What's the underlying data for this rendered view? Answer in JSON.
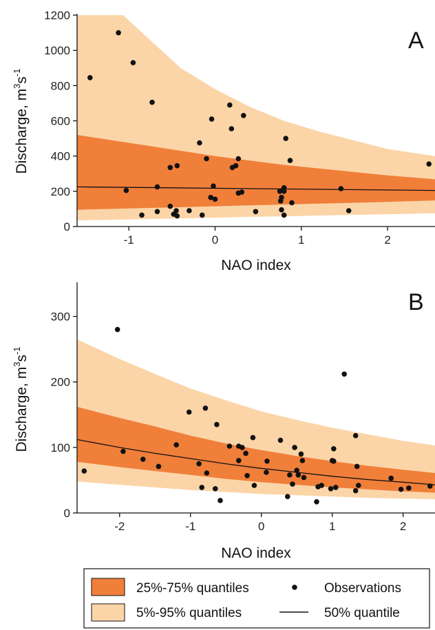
{
  "chart_data": [
    {
      "type": "scatter",
      "panel_label": "A",
      "xlabel": "NAO index",
      "ylabel_main": "Discharge, m",
      "ylabel_sup1": "3",
      "ylabel_mid": "s",
      "ylabel_sup2": "-1",
      "xlim": [
        -1.6,
        2.55
      ],
      "ylim": [
        0,
        1200
      ],
      "xticks": [
        -1,
        0,
        1,
        2
      ],
      "yticks": [
        0,
        200,
        400,
        600,
        800,
        1000,
        1200
      ],
      "band_5_95": {
        "x": [
          -1.6,
          -1.2,
          -0.8,
          -0.4,
          0.0,
          0.4,
          0.8,
          1.2,
          1.6,
          2.0,
          2.55
        ],
        "lower": [
          35,
          38,
          42,
          46,
          50,
          55,
          58,
          62,
          66,
          70,
          75
        ],
        "upper": [
          1500,
          1260,
          1080,
          900,
          780,
          680,
          600,
          540,
          490,
          440,
          400
        ]
      },
      "band_25_75": {
        "x": [
          -1.6,
          -1.2,
          -0.8,
          -0.4,
          0.0,
          0.4,
          0.8,
          1.2,
          1.6,
          2.0,
          2.55
        ],
        "lower": [
          95,
          100,
          105,
          110,
          115,
          120,
          125,
          130,
          135,
          140,
          148
        ],
        "upper": [
          520,
          490,
          460,
          430,
          400,
          375,
          350,
          330,
          310,
          290,
          268
        ]
      },
      "median": {
        "x": [
          -1.6,
          2.55
        ],
        "y": [
          225,
          205
        ]
      },
      "points": [
        [
          -1.45,
          845
        ],
        [
          -1.12,
          1100
        ],
        [
          -0.95,
          930
        ],
        [
          -0.73,
          705
        ],
        [
          -1.03,
          205
        ],
        [
          -0.67,
          225
        ],
        [
          -0.67,
          85
        ],
        [
          -0.85,
          65
        ],
        [
          -0.52,
          335
        ],
        [
          -0.44,
          345
        ],
        [
          -0.52,
          115
        ],
        [
          -0.48,
          70
        ],
        [
          -0.45,
          90
        ],
        [
          -0.44,
          60
        ],
        [
          -0.3,
          90
        ],
        [
          -0.18,
          475
        ],
        [
          -0.1,
          385
        ],
        [
          -0.15,
          65
        ],
        [
          -0.04,
          610
        ],
        [
          -0.02,
          230
        ],
        [
          -0.05,
          165
        ],
        [
          0.0,
          155
        ],
        [
          0.17,
          690
        ],
        [
          0.19,
          555
        ],
        [
          0.2,
          335
        ],
        [
          0.24,
          345
        ],
        [
          0.27,
          385
        ],
        [
          0.27,
          190
        ],
        [
          0.33,
          630
        ],
        [
          0.31,
          195
        ],
        [
          0.47,
          85
        ],
        [
          0.75,
          200
        ],
        [
          0.77,
          165
        ],
        [
          0.76,
          145
        ],
        [
          0.77,
          95
        ],
        [
          0.79,
          210
        ],
        [
          0.8,
          220
        ],
        [
          0.8,
          200
        ],
        [
          0.8,
          65
        ],
        [
          0.82,
          500
        ],
        [
          0.87,
          375
        ],
        [
          0.89,
          135
        ],
        [
          1.46,
          215
        ],
        [
          1.55,
          90
        ],
        [
          2.48,
          355
        ]
      ]
    },
    {
      "type": "scatter",
      "panel_label": "B",
      "xlabel": "NAO index",
      "ylabel_main": "Discharge, m",
      "ylabel_sup1": "3",
      "ylabel_mid": "s",
      "ylabel_sup2": "-1",
      "xlim": [
        -2.6,
        2.45
      ],
      "ylim": [
        0,
        350
      ],
      "xticks": [
        -2,
        -1,
        0,
        1,
        2
      ],
      "yticks": [
        0,
        100,
        200,
        300
      ],
      "band_5_95": {
        "x": [
          -2.6,
          -2.0,
          -1.5,
          -1.0,
          -0.5,
          0.0,
          0.5,
          1.0,
          1.5,
          2.0,
          2.45
        ],
        "lower": [
          48,
          43,
          39,
          35,
          32,
          29,
          27,
          25,
          23,
          22,
          21
        ],
        "upper": [
          265,
          235,
          212,
          190,
          172,
          155,
          142,
          130,
          120,
          110,
          103
        ]
      },
      "band_25_75": {
        "x": [
          -2.6,
          -2.0,
          -1.5,
          -1.0,
          -0.5,
          0.0,
          0.5,
          1.0,
          1.5,
          2.0,
          2.45
        ],
        "lower": [
          78,
          70,
          64,
          58,
          52,
          47,
          43,
          39,
          36,
          33,
          31
        ],
        "upper": [
          162,
          145,
          132,
          118,
          106,
          96,
          87,
          79,
          72,
          66,
          61
        ]
      },
      "median": {
        "x": [
          -2.6,
          -2.0,
          -1.5,
          -1.0,
          -0.5,
          0.0,
          0.5,
          1.0,
          1.5,
          2.0,
          2.45
        ],
        "y": [
          112,
          100,
          91,
          83,
          75,
          68,
          62,
          56,
          51,
          47,
          43
        ]
      },
      "points": [
        [
          -2.5,
          64
        ],
        [
          -2.03,
          280
        ],
        [
          -1.95,
          94
        ],
        [
          -1.67,
          82
        ],
        [
          -1.45,
          71
        ],
        [
          -1.2,
          104
        ],
        [
          -1.02,
          154
        ],
        [
          -0.88,
          75
        ],
        [
          -0.84,
          39
        ],
        [
          -0.79,
          160
        ],
        [
          -0.77,
          61
        ],
        [
          -0.65,
          37
        ],
        [
          -0.63,
          135
        ],
        [
          -0.58,
          19
        ],
        [
          -0.45,
          102
        ],
        [
          -0.32,
          102
        ],
        [
          -0.32,
          80
        ],
        [
          -0.27,
          100
        ],
        [
          -0.22,
          91
        ],
        [
          -0.2,
          57
        ],
        [
          -0.12,
          115
        ],
        [
          -0.1,
          42
        ],
        [
          0.07,
          62
        ],
        [
          0.08,
          79
        ],
        [
          0.27,
          111
        ],
        [
          0.37,
          25
        ],
        [
          0.4,
          58
        ],
        [
          0.44,
          44
        ],
        [
          0.47,
          100
        ],
        [
          0.5,
          65
        ],
        [
          0.52,
          58
        ],
        [
          0.56,
          90
        ],
        [
          0.58,
          80
        ],
        [
          0.6,
          54
        ],
        [
          0.78,
          17
        ],
        [
          0.8,
          40
        ],
        [
          0.85,
          42
        ],
        [
          0.98,
          37
        ],
        [
          1.0,
          80
        ],
        [
          1.02,
          98
        ],
        [
          1.02,
          79
        ],
        [
          1.05,
          39
        ],
        [
          1.17,
          212
        ],
        [
          1.33,
          118
        ],
        [
          1.33,
          34
        ],
        [
          1.35,
          71
        ],
        [
          1.37,
          42
        ],
        [
          1.83,
          53
        ],
        [
          1.97,
          36
        ],
        [
          2.08,
          38
        ],
        [
          2.38,
          41
        ]
      ]
    }
  ],
  "legend": {
    "band_25_75_label": "25%-75% quantiles",
    "band_5_95_label": "5%-95% quantiles",
    "observations_label": "Observations",
    "median_label": "50% quantile"
  },
  "colors": {
    "band_25_75": "#f07f3a",
    "band_5_95": "#fbd5a8",
    "points": "#111111",
    "median": "#111111",
    "axis": "#111111"
  }
}
